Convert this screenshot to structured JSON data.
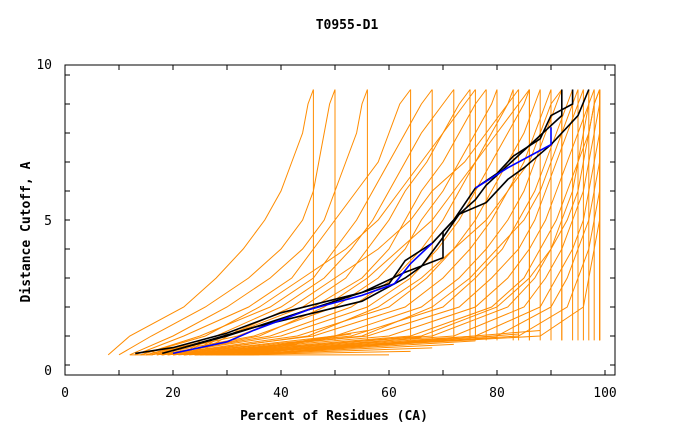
{
  "chart_data": {
    "type": "line",
    "title": "T0955-D1",
    "xlabel": "Percent of Residues (CA)",
    "ylabel": "Distance Cutoff, A",
    "xlim": [
      0,
      100
    ],
    "ylim": [
      0,
      10
    ],
    "x_ticks": [
      "0",
      "20",
      "40",
      "60",
      "80",
      "100"
    ],
    "y_ticks": [
      "0",
      "5",
      "10"
    ],
    "grid": false,
    "colors": {
      "models": "#ff8c00",
      "highlight_black": "#000000",
      "highlight_blue": "#0000ff"
    },
    "y_levels": [
      0.35,
      1,
      2,
      3,
      4,
      5,
      6,
      7,
      8,
      9,
      9.5
    ],
    "model_series_x": [
      [
        8,
        12,
        22,
        28,
        33,
        37,
        40,
        42,
        44,
        45,
        46
      ],
      [
        10,
        16,
        26,
        34,
        40,
        44,
        46,
        47,
        48,
        49,
        50
      ],
      [
        12,
        20,
        30,
        38,
        44,
        48,
        50,
        52,
        54,
        55,
        56
      ],
      [
        13,
        22,
        34,
        42,
        46,
        50,
        54,
        58,
        60,
        62,
        64
      ],
      [
        14,
        25,
        38,
        46,
        50,
        54,
        57,
        60,
        63,
        66,
        68
      ],
      [
        15,
        28,
        40,
        48,
        53,
        57,
        60,
        63,
        66,
        70,
        72
      ],
      [
        15,
        30,
        44,
        52,
        56,
        60,
        63,
        67,
        70,
        73,
        75
      ],
      [
        16,
        32,
        46,
        55,
        60,
        63,
        66,
        70,
        73,
        76,
        78
      ],
      [
        16,
        35,
        50,
        58,
        63,
        66,
        70,
        73,
        76,
        79,
        80
      ],
      [
        17,
        38,
        53,
        61,
        66,
        70,
        73,
        76,
        79,
        82,
        83
      ],
      [
        17,
        40,
        56,
        64,
        69,
        73,
        76,
        79,
        82,
        85,
        86
      ],
      [
        18,
        43,
        60,
        67,
        72,
        76,
        79,
        82,
        85,
        87,
        88
      ],
      [
        18,
        46,
        63,
        70,
        75,
        79,
        82,
        85,
        87,
        89,
        90
      ],
      [
        19,
        50,
        66,
        73,
        78,
        82,
        85,
        87,
        89,
        91,
        92
      ],
      [
        19,
        53,
        70,
        76,
        81,
        84,
        87,
        89,
        91,
        93,
        94
      ],
      [
        20,
        56,
        73,
        79,
        84,
        87,
        89,
        91,
        93,
        95,
        96
      ],
      [
        20,
        60,
        76,
        82,
        86,
        89,
        91,
        93,
        95,
        97,
        98
      ],
      [
        21,
        64,
        79,
        85,
        88,
        91,
        93,
        95,
        97,
        98,
        99
      ],
      [
        22,
        68,
        82,
        87,
        90,
        93,
        95,
        96,
        97,
        98,
        99
      ],
      [
        22,
        72,
        85,
        89,
        92,
        94,
        96,
        97,
        98,
        99,
        99
      ],
      [
        23,
        76,
        88,
        91,
        94,
        96,
        97,
        98,
        99,
        99,
        99
      ],
      [
        24,
        80,
        90,
        93,
        95,
        97,
        98,
        99,
        99,
        99,
        99
      ],
      [
        25,
        84,
        93,
        95,
        97,
        98,
        99,
        99,
        99,
        99,
        99
      ],
      [
        26,
        88,
        96,
        97,
        98,
        99,
        99,
        99,
        99,
        99,
        99
      ],
      [
        18,
        36,
        48,
        56,
        62,
        68,
        72,
        76,
        80,
        84,
        86
      ],
      [
        16,
        30,
        42,
        50,
        58,
        64,
        68,
        74,
        78,
        82,
        84
      ],
      [
        20,
        45,
        58,
        66,
        72,
        78,
        82,
        86,
        88,
        90,
        92
      ],
      [
        22,
        55,
        68,
        75,
        80,
        85,
        88,
        90,
        92,
        94,
        95
      ],
      [
        14,
        26,
        36,
        44,
        52,
        58,
        62,
        66,
        70,
        74,
        76
      ],
      [
        24,
        66,
        80,
        86,
        90,
        92,
        94,
        95,
        96,
        97,
        97
      ]
    ],
    "highlight_series": [
      {
        "color": "black",
        "points": [
          [
            13,
            0.4
          ],
          [
            20,
            0.6
          ],
          [
            30,
            1.1
          ],
          [
            40,
            1.8
          ],
          [
            55,
            2.5
          ],
          [
            63,
            3.2
          ],
          [
            70,
            3.7
          ],
          [
            70,
            4.6
          ],
          [
            73,
            5.2
          ],
          [
            76,
            5.7
          ],
          [
            78,
            6.2
          ],
          [
            85,
            7.4
          ],
          [
            92,
            8.6
          ],
          [
            92,
            9.5
          ]
        ]
      },
      {
        "color": "black",
        "points": [
          [
            18,
            0.4
          ],
          [
            30,
            1.0
          ],
          [
            45,
            1.9
          ],
          [
            60,
            2.8
          ],
          [
            63,
            3.6
          ],
          [
            68,
            4.2
          ],
          [
            72,
            5.0
          ],
          [
            76,
            6.1
          ],
          [
            80,
            6.6
          ],
          [
            83,
            7.2
          ],
          [
            88,
            7.8
          ],
          [
            90,
            8.6
          ],
          [
            94,
            9.0
          ],
          [
            94,
            9.5
          ]
        ]
      },
      {
        "color": "black",
        "points": [
          [
            20,
            0.5
          ],
          [
            35,
            1.3
          ],
          [
            55,
            2.2
          ],
          [
            63,
            3.0
          ],
          [
            66,
            3.4
          ],
          [
            70,
            4.4
          ],
          [
            73,
            5.2
          ],
          [
            78,
            5.6
          ],
          [
            82,
            6.4
          ],
          [
            85,
            6.8
          ],
          [
            90,
            7.6
          ],
          [
            95,
            8.6
          ],
          [
            97,
            9.5
          ]
        ]
      },
      {
        "color": "blue",
        "points": [
          [
            20,
            0.4
          ],
          [
            30,
            0.8
          ],
          [
            35,
            1.2
          ],
          [
            45,
            1.9
          ],
          [
            55,
            2.4
          ],
          [
            61,
            2.8
          ],
          [
            64,
            3.5
          ],
          [
            68,
            4.2
          ]
        ]
      },
      {
        "color": "blue",
        "points": [
          [
            76,
            6.1
          ],
          [
            82,
            6.8
          ],
          [
            90,
            7.6
          ],
          [
            90,
            8.2
          ]
        ]
      }
    ]
  }
}
